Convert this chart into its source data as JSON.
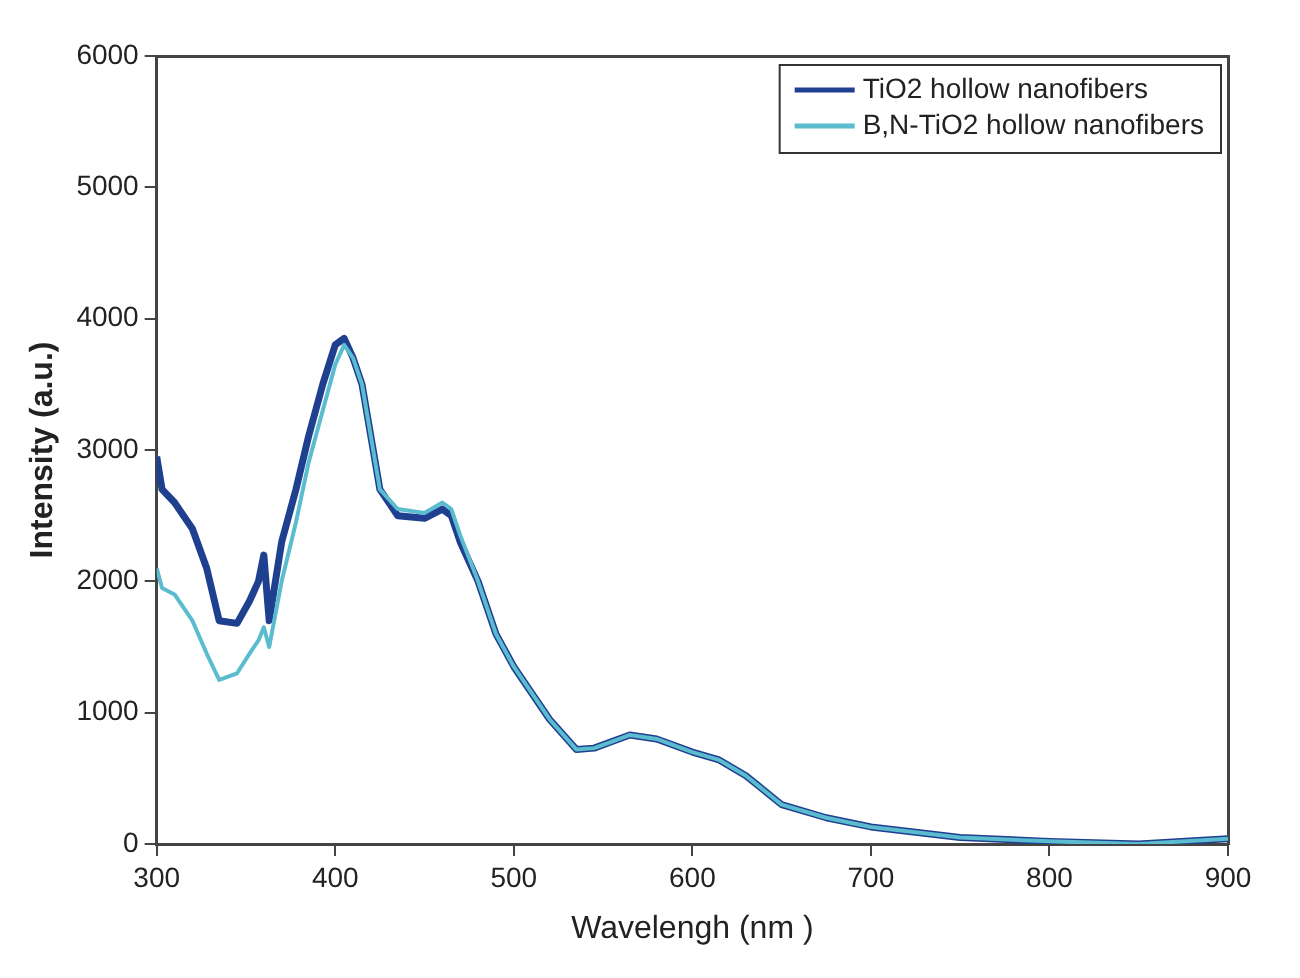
{
  "chart_data": {
    "type": "line",
    "xlabel": "Wavelengh (nm )",
    "ylabel": "Intensity (a.u.)",
    "xlim": [
      300,
      900
    ],
    "xticks": [
      300,
      400,
      500,
      600,
      700,
      800,
      900
    ],
    "ylim": [
      0,
      6000
    ],
    "yticks": [
      0,
      1000,
      2000,
      3000,
      4000,
      5000,
      6000
    ],
    "grid": false,
    "legend": "top right",
    "marker": "none",
    "line_style": "solid",
    "series": [
      {
        "name": "TiO2 hollow nanofibers",
        "color": "#1f3f8f",
        "x": [
          300,
          303,
          310,
          320,
          328,
          335,
          345,
          352,
          357,
          360,
          363,
          370,
          378,
          385,
          393,
          400,
          405,
          410,
          415,
          420,
          425,
          435,
          450,
          460,
          465,
          470,
          480,
          490,
          500,
          510,
          520,
          535,
          545,
          555,
          565,
          580,
          600,
          615,
          630,
          650,
          675,
          700,
          750,
          800,
          850,
          900
        ],
        "values": [
          2950,
          2700,
          2600,
          2400,
          2100,
          1700,
          1680,
          1850,
          2000,
          2200,
          1700,
          2300,
          2700,
          3100,
          3500,
          3800,
          3850,
          3700,
          3500,
          3100,
          2700,
          2500,
          2480,
          2550,
          2500,
          2300,
          2000,
          1600,
          1350,
          1150,
          950,
          720,
          730,
          780,
          830,
          800,
          700,
          640,
          520,
          300,
          200,
          130,
          50,
          20,
          0,
          40
        ]
      },
      {
        "name": "B,N-TiO2 hollow nanofibers",
        "color": "#5bbcd0",
        "x": [
          300,
          303,
          310,
          320,
          328,
          335,
          345,
          352,
          357,
          360,
          363,
          370,
          378,
          385,
          393,
          400,
          405,
          410,
          415,
          420,
          425,
          435,
          450,
          460,
          465,
          470,
          480,
          490,
          500,
          510,
          520,
          535,
          545,
          555,
          565,
          580,
          600,
          615,
          630,
          650,
          675,
          700,
          750,
          800,
          850,
          900
        ],
        "values": [
          2100,
          1950,
          1900,
          1700,
          1450,
          1250,
          1300,
          1450,
          1550,
          1650,
          1500,
          2000,
          2450,
          2900,
          3300,
          3650,
          3800,
          3700,
          3500,
          3100,
          2700,
          2550,
          2520,
          2600,
          2550,
          2350,
          2000,
          1600,
          1350,
          1150,
          950,
          720,
          730,
          780,
          830,
          800,
          700,
          640,
          520,
          300,
          200,
          130,
          50,
          20,
          0,
          40
        ]
      }
    ]
  }
}
